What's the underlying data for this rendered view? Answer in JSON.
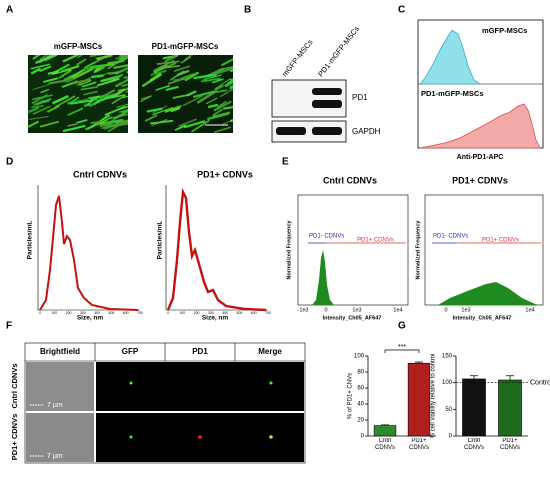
{
  "panel_letters": [
    "A",
    "B",
    "C",
    "D",
    "E",
    "F",
    "G"
  ],
  "panel_a": {
    "labels": [
      "mGFP-MSCs",
      "PD1-mGFP-MSCs"
    ]
  },
  "panel_b": {
    "columns": [
      "mGFP-MSCs",
      "PD1-mGFP-MSCs"
    ],
    "rows": [
      "PD1",
      "GAPDH"
    ]
  },
  "panel_c": {
    "top_label": "mGFP-MSCs",
    "bottom_label": "PD1-mGFP-MSCs",
    "x_label": "Anti-PD1-APC"
  },
  "panel_d": {
    "y_label": "Particles/mL",
    "x_label": "Size, nm",
    "xticks": [
      "0",
      "100",
      "200",
      "300",
      "400",
      "500",
      "600",
      "700"
    ],
    "plots": [
      {
        "title": "Cntrl CDNVs"
      },
      {
        "title": "PD1+ CDNVs"
      }
    ]
  },
  "panel_e": {
    "y_label": "Normalized Frequency",
    "x_label": "Intensity_Ch05_AF647",
    "gates": [
      "PD1- CDNVs",
      "PD1+ CDNVs"
    ],
    "plots": [
      {
        "title": "Cntrl CDNVs",
        "xticks": [
          "-1e3",
          "0",
          "1e3",
          "1e4"
        ]
      },
      {
        "title": "PD1+ CDNVs",
        "xticks": [
          "0",
          "1e3",
          "1e4"
        ]
      }
    ]
  },
  "panel_f": {
    "columns": [
      "Brightfield",
      "GFP",
      "PD1",
      "Merge"
    ],
    "rows": [
      "Cntrl CDNVs",
      "PD1+ CDNVs"
    ],
    "scale_bar": "7 µm"
  },
  "chart_data": [
    {
      "type": "bar",
      "y_label": "% of PD1+ CNVs",
      "categories": [
        "Cntrl CDNVs",
        "PD1+ CDNVs"
      ],
      "values": [
        13,
        91
      ],
      "errors": [
        1,
        1.5
      ],
      "colors": [
        "#2f8a2f",
        "#b01e1e"
      ],
      "ylim": [
        0,
        100
      ],
      "yticks": [
        0,
        20,
        40,
        60,
        80,
        100
      ],
      "annotation": "***"
    },
    {
      "type": "bar",
      "y_label": "% cell viability relative to control",
      "categories": [
        "Cntrl CDNVs",
        "PD1+ CDNVs"
      ],
      "values": [
        107,
        105
      ],
      "errors": [
        6,
        8
      ],
      "colors": [
        "#111111",
        "#1e6b1e"
      ],
      "ylim": [
        0,
        150
      ],
      "yticks": [
        0,
        50,
        100,
        150
      ],
      "reference": 100,
      "reference_label": "Control"
    }
  ]
}
